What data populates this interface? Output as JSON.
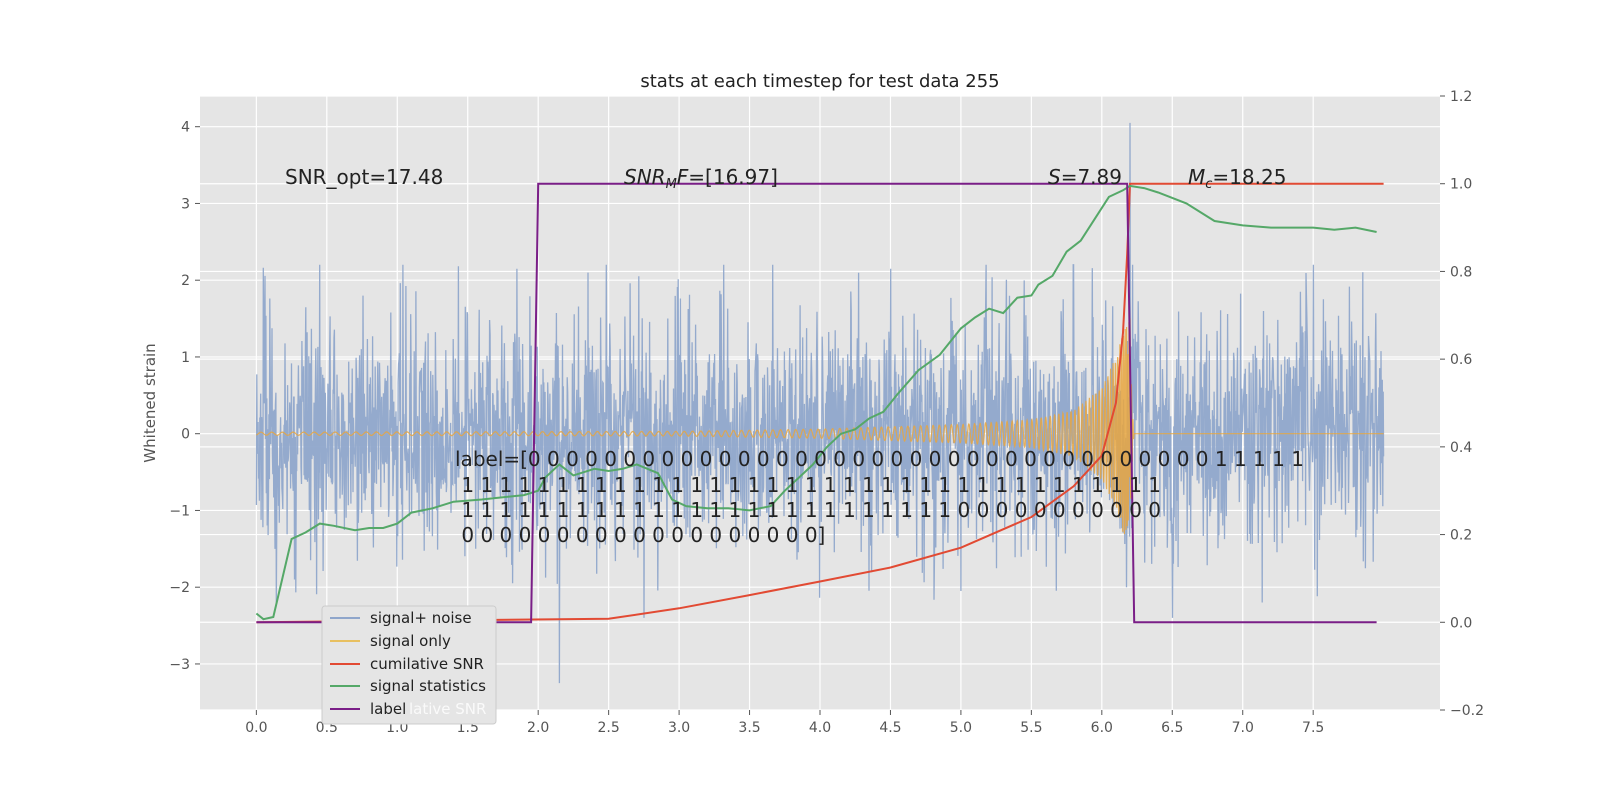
{
  "chart_data": {
    "type": "line",
    "title": "stats at each timestep for test data 255",
    "xlabel": "",
    "ylabel": "Whitened strain",
    "xlim": [
      -0.4,
      8.4
    ],
    "ylim": [
      -3.6,
      4.4
    ],
    "ylim_right": [
      -0.2,
      1.2
    ],
    "x_ticks": [
      "0.0",
      "0.5",
      "1.0",
      "1.5",
      "2.0",
      "2.5",
      "3.0",
      "3.5",
      "4.0",
      "4.5",
      "5.0",
      "5.5",
      "6.0",
      "6.5",
      "7.0",
      "7.5"
    ],
    "x_tick_values": [
      0,
      0.5,
      1,
      1.5,
      2,
      2.5,
      3,
      3.5,
      4,
      4.5,
      5,
      5.5,
      6,
      6.5,
      7,
      7.5
    ],
    "y_ticks_left": [
      "−3",
      "−2",
      "−1",
      "0",
      "1",
      "2",
      "3",
      "4"
    ],
    "y_tick_values_left": [
      -3,
      -2,
      -1,
      0,
      1,
      2,
      3,
      4
    ],
    "y_ticks_right": [
      "−0.2",
      "0.0",
      "0.2",
      "0.4",
      "0.6",
      "0.8",
      "1.0",
      "1.2"
    ],
    "y_tick_values_right": [
      -0.2,
      0,
      0.2,
      0.4,
      0.6,
      0.8,
      1.0,
      1.2
    ],
    "grid": true,
    "legend_placement": "lower-left",
    "annotations": {
      "snr_opt": "SNR_opt=17.48",
      "snr_mf_prefix": "SNR",
      "snr_mf_sub": "M",
      "snr_mf_rest": "F=[16.97]",
      "s_prefix": "S",
      "s_rest": "=7.89",
      "mc_prefix": "M",
      "mc_sub": "c",
      "mc_rest": "=18.25",
      "label_line1": "label=[0 0 0 0 0 0 0 0 0 0 0 0 0 0 0 0 0 0 0 0 0 0 0 0 0 0 0 0 0 0 0 0 0 0 0 0 1 1 1 1 1",
      "label_line2": " 1 1 1 1 1 1 1 1 1 1 1 1 1 1 1 1 1 1 1 1 1 1 1 1 1 1 1 1 1 1 1 1 1 1 1 1 1",
      "label_line3": " 1 1 1 1 1 1 1 1 1 1 1 1 1 1 1 1 1 1 1 1 1 1 1 1 1 1 0 0 0 0 0 0 0 0 0 0 0",
      "label_line4": " 0 0 0 0 0 0 0 0 0 0 0 0 0 0 0 0 0 0 0]"
    },
    "legend": [
      "signal+ noise",
      "signal only",
      "cumilative SNR",
      "signal statistics",
      "label"
    ],
    "legend_ghost_text": "lative SNR",
    "series": [
      {
        "name": "signal+ noise",
        "axis": "left",
        "color": "#8fa6cb",
        "style": "noise",
        "x_range": [
          0,
          8
        ],
        "amplitude_std": 0.75,
        "spikes": [
          [
            0.27,
            2.55
          ],
          [
            0.27,
            -1.9
          ],
          [
            2.15,
            -3.25
          ],
          [
            6.2,
            4.05
          ],
          [
            7.5,
            2.2
          ],
          [
            1.85,
            2.15
          ],
          [
            4.5,
            2.15
          ],
          [
            5.0,
            -2.05
          ],
          [
            2.75,
            -2.4
          ],
          [
            6.5,
            -2.4
          ]
        ]
      },
      {
        "name": "signal only",
        "axis": "left",
        "color": "#e8a640",
        "style": "chirp",
        "t_merge": 6.2,
        "amplitude_points": [
          [
            0,
            0.02
          ],
          [
            3,
            0.03
          ],
          [
            4,
            0.06
          ],
          [
            5,
            0.12
          ],
          [
            5.5,
            0.18
          ],
          [
            5.8,
            0.3
          ],
          [
            6.0,
            0.6
          ],
          [
            6.1,
            1.0
          ],
          [
            6.15,
            1.3
          ],
          [
            6.2,
            1.5
          ],
          [
            6.23,
            0.0
          ]
        ]
      },
      {
        "name": "cumilative SNR",
        "axis": "right",
        "color": "#e24a33",
        "x": [
          0,
          2.5,
          3.0,
          3.5,
          4.0,
          4.5,
          5.0,
          5.5,
          5.8,
          6.0,
          6.1,
          6.15,
          6.18,
          6.2,
          8.0
        ],
        "y": [
          0.0,
          0.008,
          0.032,
          0.062,
          0.093,
          0.125,
          0.17,
          0.24,
          0.31,
          0.38,
          0.5,
          0.66,
          0.84,
          1.0,
          1.0
        ]
      },
      {
        "name": "signal statistics",
        "axis": "right",
        "color": "#55a868",
        "x": [
          0,
          0.05,
          0.12,
          0.25,
          0.35,
          0.45,
          0.55,
          0.7,
          0.8,
          0.9,
          1.0,
          1.1,
          1.25,
          1.4,
          1.6,
          1.75,
          1.9,
          2.0,
          2.05,
          2.15,
          2.25,
          2.4,
          2.5,
          2.6,
          2.7,
          2.85,
          2.95,
          3.05,
          3.2,
          3.35,
          3.5,
          3.65,
          3.75,
          3.85,
          3.95,
          4.05,
          4.15,
          4.25,
          4.35,
          4.45,
          4.55,
          4.7,
          4.85,
          5.0,
          5.1,
          5.2,
          5.3,
          5.4,
          5.5,
          5.55,
          5.65,
          5.75,
          5.85,
          5.95,
          6.05,
          6.15,
          6.2,
          6.3,
          6.4,
          6.6,
          6.8,
          7.0,
          7.2,
          7.35,
          7.5,
          7.65,
          7.8,
          7.95
        ],
        "y": [
          0.02,
          0.007,
          0.012,
          0.19,
          0.205,
          0.225,
          0.22,
          0.21,
          0.215,
          0.215,
          0.225,
          0.25,
          0.26,
          0.275,
          0.28,
          0.285,
          0.29,
          0.3,
          0.33,
          0.36,
          0.335,
          0.35,
          0.345,
          0.35,
          0.36,
          0.34,
          0.28,
          0.265,
          0.26,
          0.26,
          0.255,
          0.265,
          0.3,
          0.33,
          0.36,
          0.4,
          0.43,
          0.44,
          0.465,
          0.48,
          0.52,
          0.575,
          0.61,
          0.67,
          0.695,
          0.715,
          0.705,
          0.74,
          0.745,
          0.77,
          0.79,
          0.845,
          0.87,
          0.92,
          0.97,
          0.985,
          0.995,
          0.99,
          0.98,
          0.955,
          0.915,
          0.905,
          0.9,
          0.9,
          0.9,
          0.895,
          0.9,
          0.89
        ]
      },
      {
        "name": "label",
        "axis": "right",
        "color": "#7a1e87",
        "x": [
          0,
          1.95,
          2.0,
          6.18,
          6.23,
          7.95
        ],
        "y": [
          0.0,
          0.0,
          1.0,
          1.0,
          0.0,
          0.0
        ]
      }
    ]
  }
}
